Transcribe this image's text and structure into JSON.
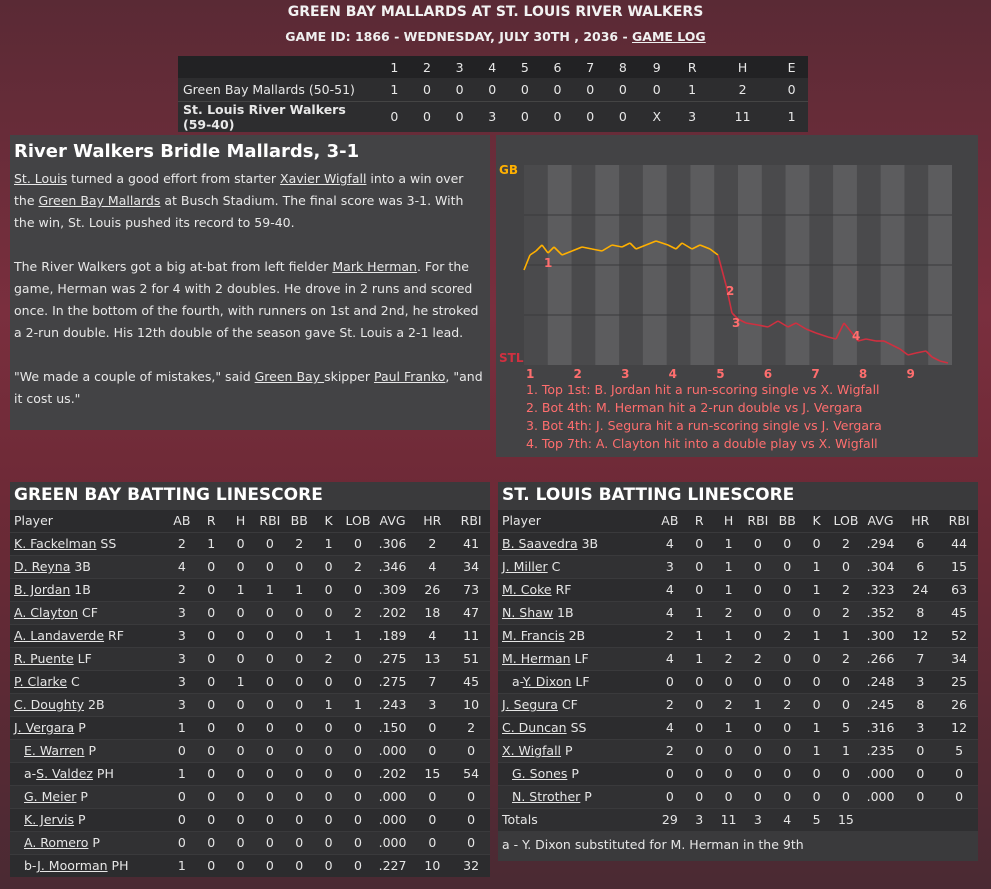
{
  "header": {
    "title": "GREEN BAY MALLARDS AT ST. LOUIS RIVER WALKERS",
    "subtitle": "GAME ID: 1866 - WEDNESDAY, JULY 30TH , 2036 - ",
    "game_log_link": "GAME LOG"
  },
  "linescore": {
    "headers": [
      "",
      "1",
      "2",
      "3",
      "4",
      "5",
      "6",
      "7",
      "8",
      "9",
      "R",
      "H",
      "E"
    ],
    "rows": [
      {
        "team": "Green Bay Mallards (50-51)",
        "cells": [
          "1",
          "0",
          "0",
          "0",
          "0",
          "0",
          "0",
          "0",
          "0",
          "1",
          "2",
          "0"
        ]
      },
      {
        "team": "St. Louis River Walkers (59-40)",
        "cells": [
          "0",
          "0",
          "0",
          "3",
          "0",
          "0",
          "0",
          "0",
          "X",
          "3",
          "11",
          "1"
        ]
      }
    ]
  },
  "recap": {
    "headline": "River Walkers Bridle Mallards, 3-1",
    "p1": {
      "a": "St. Louis",
      "b": " turned a good effort from starter ",
      "c": "Xavier Wigfall",
      "d": " into a win over the ",
      "e": "Green Bay Mallards",
      "f": " at Busch Stadium. The final score was 3-1. With the win, St. Louis pushed its record to 59-40."
    },
    "p2": {
      "a": "The River Walkers got a big at-bat from left fielder ",
      "b": "Mark Herman",
      "c": ". For the game, Herman was 2 for 4 with 2 doubles. He drove in 2 runs and scored once. In the bottom of the fourth, with runners on 1st and 2nd, he stroked a 2-run double. His 12th double of the season gave St. Louis a 2-1 lead."
    },
    "p3": {
      "a": "\"We made a couple of mistakes,\" said ",
      "b": "Green Bay ",
      "c": " skipper ",
      "d": "Paul Franko",
      "e": ", \"and it cost us.\""
    }
  },
  "win_prob": {
    "top_label": "GB",
    "bottom_label": "STL",
    "innings": [
      "1",
      "2",
      "3",
      "4",
      "5",
      "6",
      "7",
      "8",
      "9"
    ],
    "top_color": "#ffb000",
    "bottom_color": "#d03040",
    "markers": [
      "1",
      "2",
      "3",
      "4"
    ],
    "notes": [
      "1. Top 1st: B. Jordan hit a run-scoring single vs X. Wigfall",
      "2. Bot 4th: M. Herman hit a 2-run double vs J. Vergara",
      "3. Bot 4th: J. Segura hit a run-scoring single vs J. Vergara",
      "4. Top 7th: A. Clayton hit into a double play vs X. Wigfall"
    ]
  },
  "green_bay": {
    "title": "GREEN BAY BATTING LINESCORE",
    "headers": [
      "Player",
      "AB",
      "R",
      "H",
      "RBI",
      "BB",
      "K",
      "LOB",
      "AVG",
      "HR",
      "RBI"
    ],
    "rows": [
      {
        "prefix": "",
        "name": "K. Fackelman",
        "pos": " SS",
        "indent": false,
        "stats": [
          "2",
          "1",
          "0",
          "0",
          "2",
          "1",
          "0",
          ".306",
          "2",
          "41"
        ]
      },
      {
        "prefix": "",
        "name": "D. Reyna",
        "pos": " 3B",
        "indent": false,
        "stats": [
          "4",
          "0",
          "0",
          "0",
          "0",
          "0",
          "2",
          ".346",
          "4",
          "34"
        ]
      },
      {
        "prefix": "",
        "name": "B. Jordan",
        "pos": " 1B",
        "indent": false,
        "stats": [
          "2",
          "0",
          "1",
          "1",
          "1",
          "0",
          "0",
          ".309",
          "26",
          "73"
        ]
      },
      {
        "prefix": "",
        "name": "A. Clayton",
        "pos": " CF",
        "indent": false,
        "stats": [
          "3",
          "0",
          "0",
          "0",
          "0",
          "0",
          "2",
          ".202",
          "18",
          "47"
        ]
      },
      {
        "prefix": "",
        "name": "A. Landaverde",
        "pos": " RF",
        "indent": false,
        "stats": [
          "3",
          "0",
          "0",
          "0",
          "0",
          "1",
          "1",
          ".189",
          "4",
          "11"
        ]
      },
      {
        "prefix": "",
        "name": "R. Puente",
        "pos": " LF",
        "indent": false,
        "stats": [
          "3",
          "0",
          "0",
          "0",
          "0",
          "2",
          "0",
          ".275",
          "13",
          "51"
        ]
      },
      {
        "prefix": "",
        "name": "P. Clarke",
        "pos": " C",
        "indent": false,
        "stats": [
          "3",
          "0",
          "1",
          "0",
          "0",
          "0",
          "0",
          ".275",
          "7",
          "45"
        ]
      },
      {
        "prefix": "",
        "name": "C. Doughty",
        "pos": " 2B",
        "indent": false,
        "stats": [
          "3",
          "0",
          "0",
          "0",
          "0",
          "1",
          "1",
          ".243",
          "3",
          "10"
        ]
      },
      {
        "prefix": "",
        "name": "J. Vergara",
        "pos": " P",
        "indent": false,
        "stats": [
          "1",
          "0",
          "0",
          "0",
          "0",
          "0",
          "0",
          ".150",
          "0",
          "2"
        ]
      },
      {
        "prefix": "",
        "name": "E. Warren",
        "pos": " P",
        "indent": true,
        "stats": [
          "0",
          "0",
          "0",
          "0",
          "0",
          "0",
          "0",
          ".000",
          "0",
          "0"
        ]
      },
      {
        "prefix": "a-",
        "name": "S. Valdez",
        "pos": " PH",
        "indent": true,
        "stats": [
          "1",
          "0",
          "0",
          "0",
          "0",
          "0",
          "0",
          ".202",
          "15",
          "54"
        ]
      },
      {
        "prefix": "",
        "name": "G. Meier",
        "pos": " P",
        "indent": true,
        "stats": [
          "0",
          "0",
          "0",
          "0",
          "0",
          "0",
          "0",
          ".000",
          "0",
          "0"
        ]
      },
      {
        "prefix": "",
        "name": "K. Jervis",
        "pos": " P",
        "indent": true,
        "stats": [
          "0",
          "0",
          "0",
          "0",
          "0",
          "0",
          "0",
          ".000",
          "0",
          "0"
        ]
      },
      {
        "prefix": "",
        "name": "A. Romero",
        "pos": " P",
        "indent": true,
        "stats": [
          "0",
          "0",
          "0",
          "0",
          "0",
          "0",
          "0",
          ".000",
          "0",
          "0"
        ]
      },
      {
        "prefix": "b-",
        "name": "J. Moorman",
        "pos": " PH",
        "indent": true,
        "stats": [
          "1",
          "0",
          "0",
          "0",
          "0",
          "0",
          "0",
          ".227",
          "10",
          "32"
        ]
      }
    ]
  },
  "st_louis": {
    "title": "ST. LOUIS BATTING LINESCORE",
    "headers": [
      "Player",
      "AB",
      "R",
      "H",
      "RBI",
      "BB",
      "K",
      "LOB",
      "AVG",
      "HR",
      "RBI"
    ],
    "rows": [
      {
        "prefix": "",
        "name": "B. Saavedra",
        "pos": " 3B",
        "indent": false,
        "stats": [
          "4",
          "0",
          "1",
          "0",
          "0",
          "0",
          "2",
          ".294",
          "6",
          "44"
        ]
      },
      {
        "prefix": "",
        "name": "J. Miller",
        "pos": " C",
        "indent": false,
        "stats": [
          "3",
          "0",
          "1",
          "0",
          "0",
          "1",
          "0",
          ".304",
          "6",
          "15"
        ]
      },
      {
        "prefix": "",
        "name": "M. Coke",
        "pos": " RF",
        "indent": false,
        "stats": [
          "4",
          "0",
          "1",
          "0",
          "0",
          "1",
          "2",
          ".323",
          "24",
          "63"
        ]
      },
      {
        "prefix": "",
        "name": "N. Shaw",
        "pos": " 1B",
        "indent": false,
        "stats": [
          "4",
          "1",
          "2",
          "0",
          "0",
          "0",
          "2",
          ".352",
          "8",
          "45"
        ]
      },
      {
        "prefix": "",
        "name": "M. Francis",
        "pos": " 2B",
        "indent": false,
        "stats": [
          "2",
          "1",
          "1",
          "0",
          "2",
          "1",
          "1",
          ".300",
          "12",
          "52"
        ]
      },
      {
        "prefix": "",
        "name": "M. Herman",
        "pos": " LF",
        "indent": false,
        "stats": [
          "4",
          "1",
          "2",
          "2",
          "0",
          "0",
          "2",
          ".266",
          "7",
          "34"
        ]
      },
      {
        "prefix": "a-",
        "name": "Y. Dixon",
        "pos": " LF",
        "indent": true,
        "stats": [
          "0",
          "0",
          "0",
          "0",
          "0",
          "0",
          "0",
          ".248",
          "3",
          "25"
        ]
      },
      {
        "prefix": "",
        "name": "J. Segura",
        "pos": " CF",
        "indent": false,
        "stats": [
          "2",
          "0",
          "2",
          "1",
          "2",
          "0",
          "0",
          ".245",
          "8",
          "26"
        ]
      },
      {
        "prefix": "",
        "name": "C. Duncan",
        "pos": " SS",
        "indent": false,
        "stats": [
          "4",
          "0",
          "1",
          "0",
          "0",
          "1",
          "5",
          ".316",
          "3",
          "12"
        ]
      },
      {
        "prefix": "",
        "name": "X. Wigfall",
        "pos": " P",
        "indent": false,
        "stats": [
          "2",
          "0",
          "0",
          "0",
          "0",
          "1",
          "1",
          ".235",
          "0",
          "5"
        ]
      },
      {
        "prefix": "",
        "name": "G. Sones",
        "pos": " P",
        "indent": true,
        "stats": [
          "0",
          "0",
          "0",
          "0",
          "0",
          "0",
          "0",
          ".000",
          "0",
          "0"
        ]
      },
      {
        "prefix": "",
        "name": "N. Strother",
        "pos": " P",
        "indent": true,
        "stats": [
          "0",
          "0",
          "0",
          "0",
          "0",
          "0",
          "0",
          ".000",
          "0",
          "0"
        ]
      }
    ],
    "totals": {
      "label": "Totals",
      "stats": [
        "29",
        "3",
        "11",
        "3",
        "4",
        "5",
        "15"
      ]
    },
    "footnote": "a - Y. Dixon substituted for M. Herman in the 9th"
  }
}
